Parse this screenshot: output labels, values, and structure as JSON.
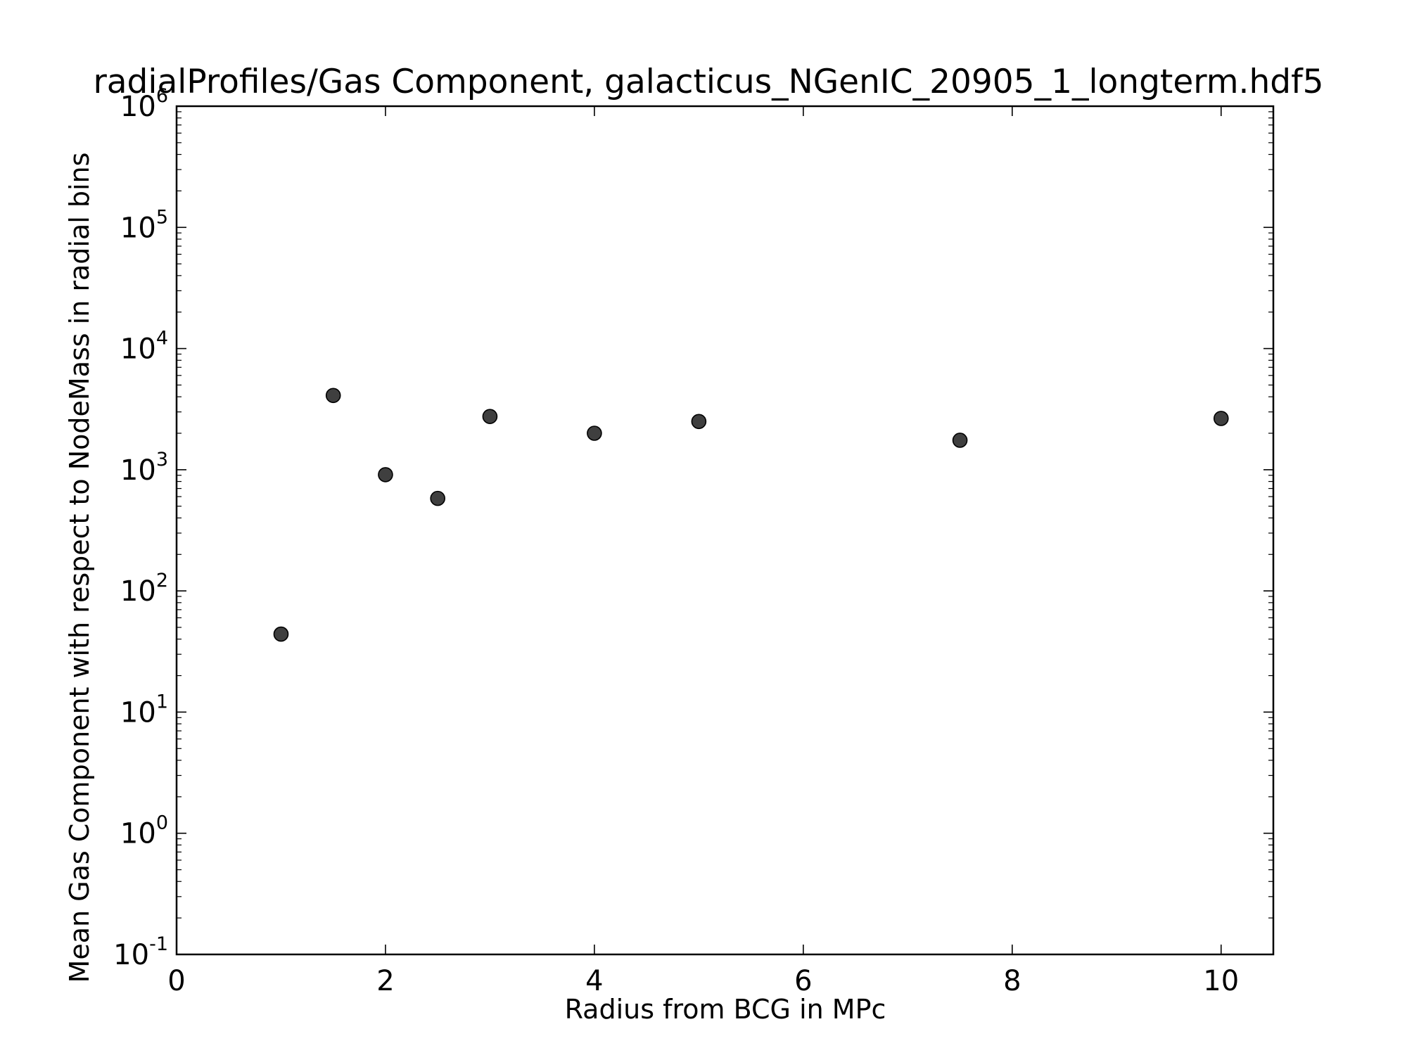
{
  "chart_data": {
    "type": "scatter",
    "title": "radialProfiles/Gas Component, galacticus_NGenIC_20905_1_longterm.hdf5",
    "xlabel": "Radius from BCG in MPc",
    "ylabel": "Mean Gas Component with respect to NodeMass in radial bins",
    "xlim": [
      0,
      10.5
    ],
    "ylim": [
      0.1,
      1000000
    ],
    "yscale": "log",
    "grid": false,
    "x_ticks": [
      {
        "value": 0,
        "label": "0"
      },
      {
        "value": 2,
        "label": "2"
      },
      {
        "value": 4,
        "label": "4"
      },
      {
        "value": 6,
        "label": "6"
      },
      {
        "value": 8,
        "label": "8"
      },
      {
        "value": 10,
        "label": "10"
      }
    ],
    "y_ticks": [
      {
        "value": 0.1,
        "base": "10",
        "exp": "-1"
      },
      {
        "value": 1,
        "base": "10",
        "exp": "0"
      },
      {
        "value": 10,
        "base": "10",
        "exp": "1"
      },
      {
        "value": 100,
        "base": "10",
        "exp": "2"
      },
      {
        "value": 1000,
        "base": "10",
        "exp": "3"
      },
      {
        "value": 10000,
        "base": "10",
        "exp": "4"
      },
      {
        "value": 100000,
        "base": "10",
        "exp": "5"
      },
      {
        "value": 1000000,
        "base": "10",
        "exp": "6"
      }
    ],
    "marker_color": "#3f3f3f",
    "series": [
      {
        "points": [
          {
            "x": 1.0,
            "y": 44
          },
          {
            "x": 1.5,
            "y": 4100
          },
          {
            "x": 2.0,
            "y": 910
          },
          {
            "x": 2.5,
            "y": 580
          },
          {
            "x": 3.0,
            "y": 2750
          },
          {
            "x": 4.0,
            "y": 2000
          },
          {
            "x": 5.0,
            "y": 2500
          },
          {
            "x": 7.5,
            "y": 1750
          },
          {
            "x": 10.0,
            "y": 2650
          }
        ]
      }
    ]
  }
}
